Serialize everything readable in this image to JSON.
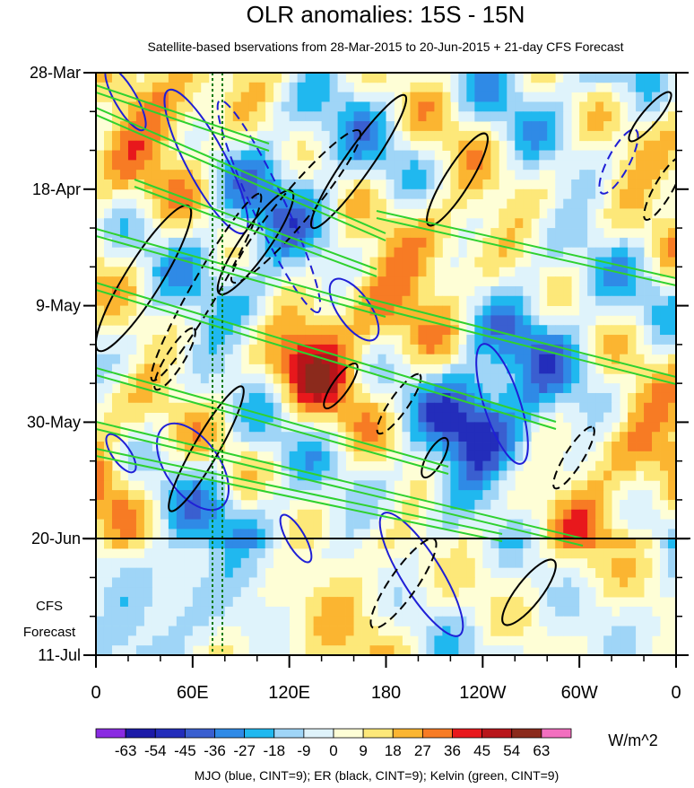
{
  "chart_data": {
    "type": "heatmap",
    "title": "OLR anomalies: 15S - 15N",
    "subtitle": "Satellite-based bservations from 28-Mar-2015 to 20-Jun-2015 + 21-day CFS Forecast",
    "x_ticks": [
      "0",
      "60E",
      "120E",
      "180",
      "120W",
      "60W",
      "0"
    ],
    "x_values": [
      0,
      60,
      120,
      180,
      240,
      300,
      360
    ],
    "xlim": [
      0,
      360
    ],
    "y_ticks": [
      "28-Mar",
      "18-Apr",
      "9-May",
      "30-May",
      "20-Jun",
      "11-Jul"
    ],
    "y_values": [
      0,
      21,
      42,
      63,
      84,
      105
    ],
    "ylim": [
      0,
      105
    ],
    "forecast_start": "20-Jun",
    "forecast_label_line1": "CFS",
    "forecast_label_line2": "Forecast",
    "colorbar": {
      "unit": "W/m^2",
      "levels": [
        "-63",
        "-54",
        "-45",
        "-36",
        "-27",
        "-18",
        "-9",
        "0",
        "9",
        "18",
        "27",
        "36",
        "45",
        "54",
        "63"
      ],
      "colors": [
        "#8a2be2",
        "#1c1aa8",
        "#232dbb",
        "#3a5fd0",
        "#2f8ae6",
        "#20b8ef",
        "#9fd5f7",
        "#dff3fb",
        "#fefed6",
        "#fde879",
        "#fbb531",
        "#f77b24",
        "#e8181c",
        "#b8151a",
        "#8b2a1c",
        "#f26fbf"
      ]
    },
    "footer": "MJO (blue, CINT=9); ER (black, CINT=9); Kelvin (green, CINT=9)",
    "overlays": {
      "mjo_color": "#1f1fd6",
      "er_color": "#000000",
      "kelvin_color": "#2fd12f",
      "reference_lines_color": "#0a7a0a"
    }
  }
}
